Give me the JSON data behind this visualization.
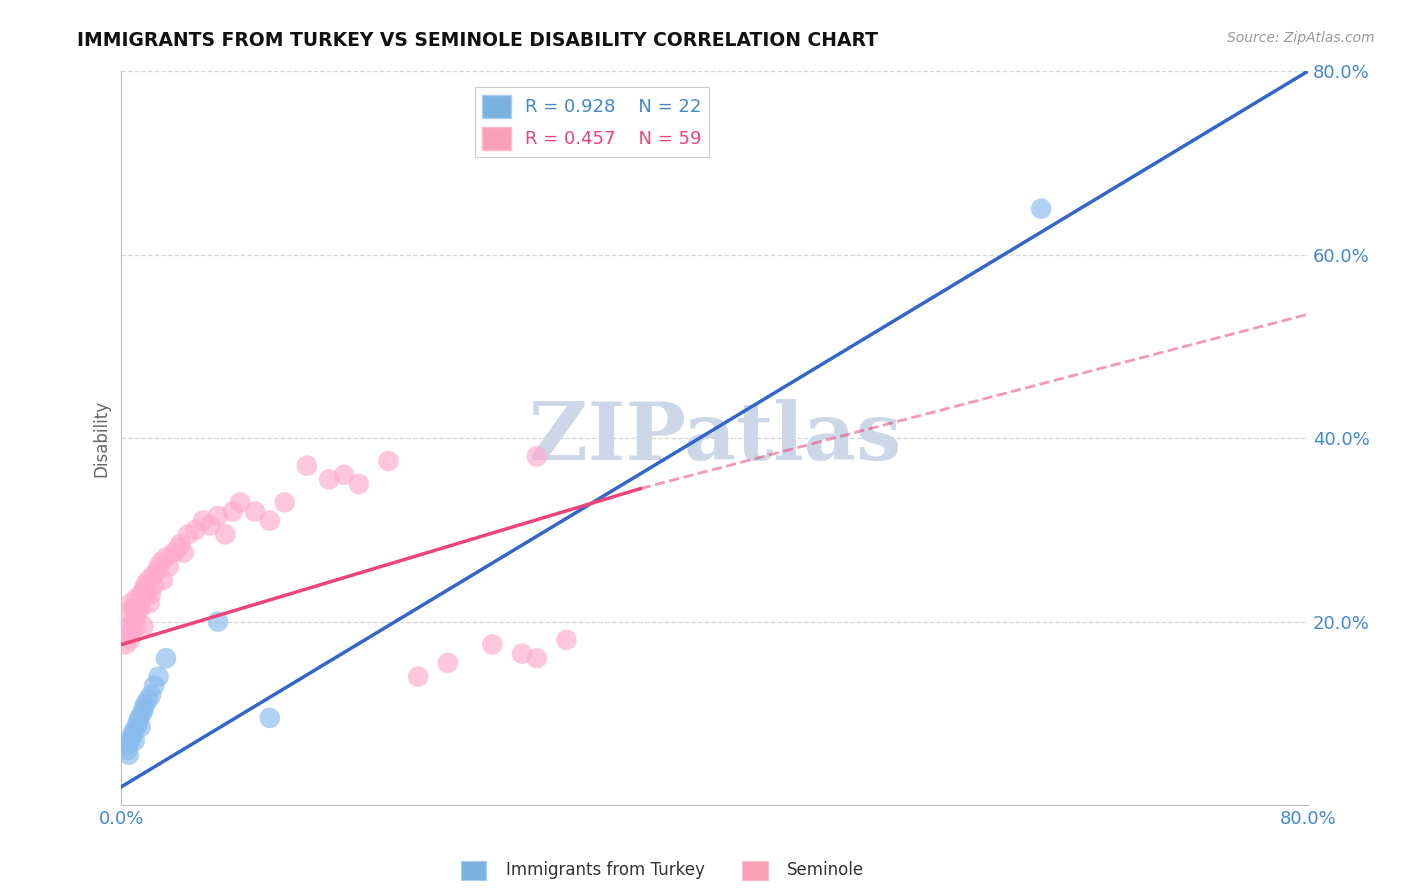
{
  "title": "IMMIGRANTS FROM TURKEY VS SEMINOLE DISABILITY CORRELATION CHART",
  "source_text": "Source: ZipAtlas.com",
  "ylabel": "Disability",
  "xlim": [
    0.0,
    0.8
  ],
  "ylim": [
    0.0,
    0.8
  ],
  "xticks": [
    0.0,
    0.1,
    0.2,
    0.3,
    0.4,
    0.5,
    0.6,
    0.7,
    0.8
  ],
  "yticks": [
    0.0,
    0.2,
    0.4,
    0.6,
    0.8
  ],
  "ytick_labels": [
    "",
    "20.0%",
    "40.0%",
    "60.0%",
    "80.0%"
  ],
  "xtick_labels": [
    "0.0%",
    "",
    "",
    "",
    "",
    "",
    "",
    "",
    "80.0%"
  ],
  "blue_R": "0.928",
  "blue_N": "22",
  "pink_R": "0.457",
  "pink_N": "59",
  "blue_legend_color": "#7ab3e0",
  "pink_legend_color": "#f8a0b8",
  "blue_scatter_color": "#88bbee",
  "pink_scatter_color": "#ffaacc",
  "line_blue": "#3366cc",
  "line_pink": "#ee4477",
  "line_pink_dashed": "#ee4477",
  "watermark_text": "ZIPatlas",
  "watermark_color": "#ccd8e8",
  "background_color": "#ffffff",
  "grid_color": "#cccccc",
  "tick_color": "#4488cc",
  "title_color": "#111111",
  "ylabel_color": "#666666",
  "blue_line_x0": 0.0,
  "blue_line_y0": 0.02,
  "blue_line_x1": 0.8,
  "blue_line_y1": 0.8,
  "pink_line_solid_x0": 0.0,
  "pink_line_solid_y0": 0.175,
  "pink_line_solid_x1": 0.35,
  "pink_line_solid_y1": 0.345,
  "pink_line_dashed_x0": 0.35,
  "pink_line_dashed_y0": 0.345,
  "pink_line_dashed_x1": 0.8,
  "pink_line_dashed_y1": 0.535,
  "blue_scatter_x": [
    0.003,
    0.004,
    0.005,
    0.006,
    0.007,
    0.008,
    0.009,
    0.01,
    0.011,
    0.012,
    0.013,
    0.014,
    0.015,
    0.016,
    0.018,
    0.02,
    0.022,
    0.025,
    0.03,
    0.065,
    0.1,
    0.62
  ],
  "blue_scatter_y": [
    0.065,
    0.06,
    0.055,
    0.07,
    0.075,
    0.08,
    0.07,
    0.085,
    0.09,
    0.095,
    0.085,
    0.1,
    0.105,
    0.11,
    0.115,
    0.12,
    0.13,
    0.14,
    0.16,
    0.2,
    0.095,
    0.65
  ],
  "pink_scatter_x": [
    0.003,
    0.004,
    0.005,
    0.005,
    0.006,
    0.006,
    0.007,
    0.008,
    0.008,
    0.009,
    0.01,
    0.01,
    0.011,
    0.012,
    0.013,
    0.013,
    0.014,
    0.015,
    0.015,
    0.016,
    0.017,
    0.018,
    0.019,
    0.02,
    0.021,
    0.022,
    0.024,
    0.025,
    0.027,
    0.028,
    0.03,
    0.032,
    0.035,
    0.038,
    0.04,
    0.042,
    0.045,
    0.05,
    0.055,
    0.06,
    0.065,
    0.07,
    0.075,
    0.08,
    0.09,
    0.1,
    0.11,
    0.125,
    0.14,
    0.15,
    0.16,
    0.18,
    0.2,
    0.22,
    0.25,
    0.27,
    0.28,
    0.3,
    0.28
  ],
  "pink_scatter_y": [
    0.175,
    0.185,
    0.195,
    0.21,
    0.18,
    0.22,
    0.19,
    0.2,
    0.215,
    0.205,
    0.225,
    0.195,
    0.21,
    0.22,
    0.215,
    0.23,
    0.225,
    0.195,
    0.235,
    0.24,
    0.23,
    0.245,
    0.22,
    0.23,
    0.25,
    0.24,
    0.255,
    0.26,
    0.265,
    0.245,
    0.27,
    0.26,
    0.275,
    0.28,
    0.285,
    0.275,
    0.295,
    0.3,
    0.31,
    0.305,
    0.315,
    0.295,
    0.32,
    0.33,
    0.32,
    0.31,
    0.33,
    0.37,
    0.355,
    0.36,
    0.35,
    0.375,
    0.14,
    0.155,
    0.175,
    0.165,
    0.38,
    0.18,
    0.16
  ]
}
